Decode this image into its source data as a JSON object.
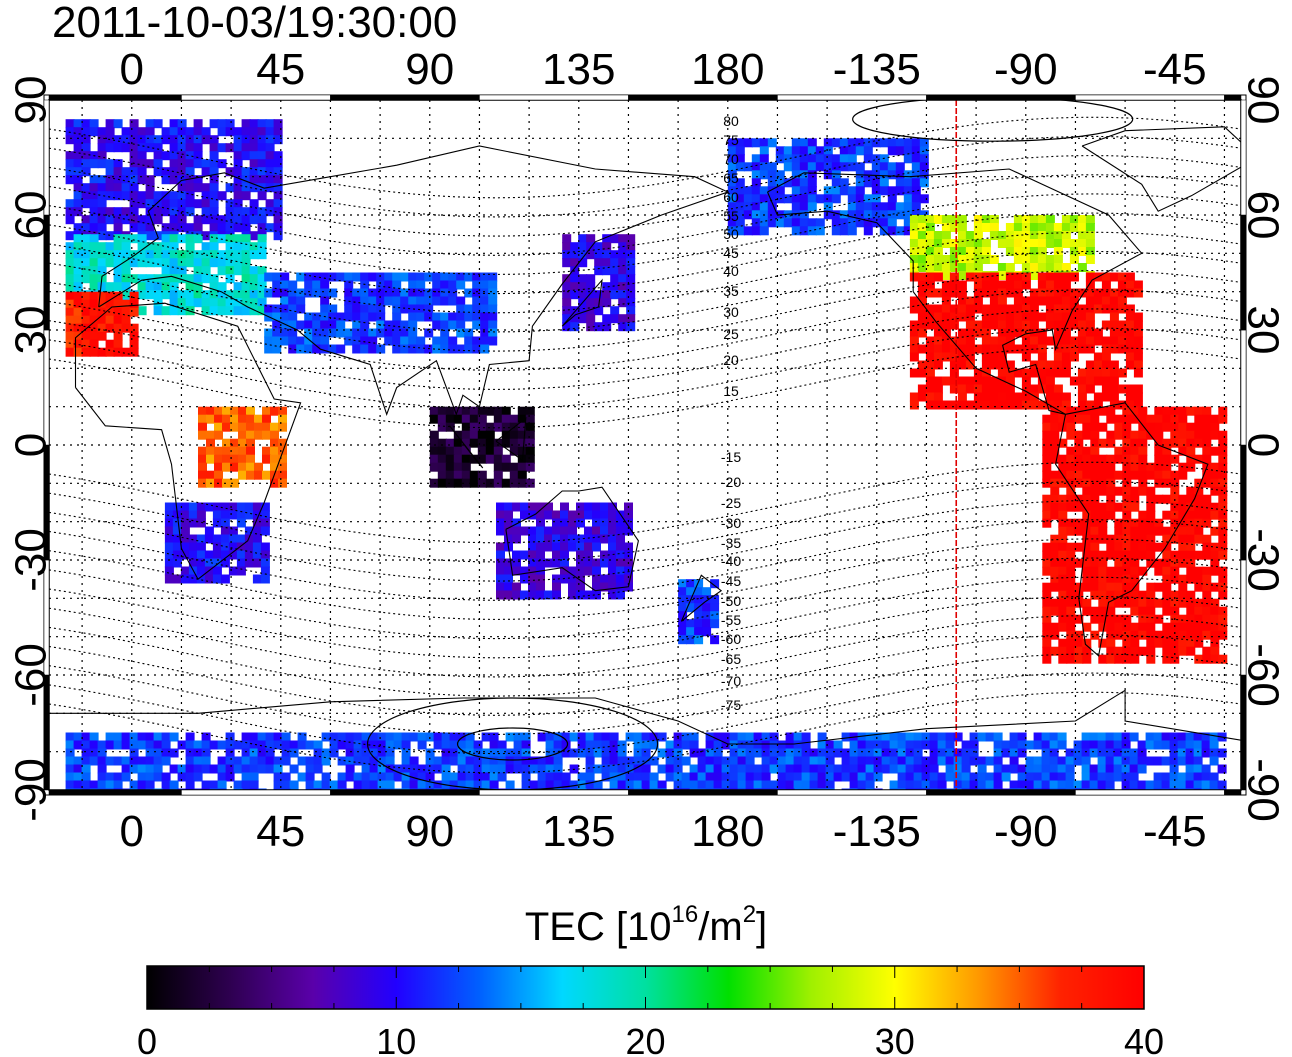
{
  "title": "2011-10-03/19:30:00",
  "top_lon_labels": [
    "0",
    "45",
    "90",
    "135",
    "180",
    "-135",
    "-90",
    "-45"
  ],
  "bottom_lon_labels": [
    "0",
    "45",
    "90",
    "135",
    "180",
    "-135",
    "-90",
    "-45"
  ],
  "lat_labels": [
    "90",
    "60",
    "30",
    "0",
    "-30",
    "-60",
    "-90"
  ],
  "mag_lat_labels_north": [
    "80",
    "75",
    "70",
    "65",
    "60",
    "55",
    "50",
    "45",
    "40",
    "35",
    "30",
    "25",
    "20",
    "15"
  ],
  "mag_lat_labels_south": [
    "-15",
    "-20",
    "-25",
    "-30",
    "-35",
    "-40",
    "-45",
    "-50",
    "-55",
    "-60",
    "-65",
    "-70",
    "-75"
  ],
  "colorbar": {
    "title_prefix": "TEC  [10",
    "title_exp1": "16",
    "title_mid": "/m",
    "title_exp2": "2",
    "title_suffix": "]",
    "min": 0,
    "max": 40,
    "tick_labels": [
      "0",
      "10",
      "20",
      "30",
      "40"
    ],
    "colormap": [
      "#000000",
      "#2e0050",
      "#5a00aa",
      "#2200ff",
      "#0060ff",
      "#00d8ff",
      "#00e0a0",
      "#00e000",
      "#a0f000",
      "#ffff00",
      "#ff9900",
      "#ff2200",
      "#ff0000"
    ]
  },
  "colors": {
    "grid": "#000000",
    "coast": "#000000",
    "meridian_marker": "#e00000"
  },
  "chart_data": {
    "type": "heatmap",
    "quantity": "TEC",
    "unit": "10^16/m^2",
    "x_range": [
      -25,
      335
    ],
    "y_range": [
      -90,
      90
    ],
    "value_range": [
      0,
      40
    ],
    "marker_longitude": -111,
    "regions": [
      {
        "lon": [
          -20,
          45
        ],
        "lat": [
          55,
          85
        ],
        "tec": 10
      },
      {
        "lon": [
          -20,
          40
        ],
        "lat": [
          35,
          55
        ],
        "tec": 18
      },
      {
        "lon": [
          -20,
          0
        ],
        "lat": [
          25,
          40
        ],
        "tec": 38
      },
      {
        "lon": [
          20,
          45
        ],
        "lat": [
          -10,
          10
        ],
        "tec": 35
      },
      {
        "lon": [
          10,
          40
        ],
        "lat": [
          -35,
          -15
        ],
        "tec": 10
      },
      {
        "lon": [
          40,
          110
        ],
        "lat": [
          25,
          45
        ],
        "tec": 12
      },
      {
        "lon": [
          90,
          120
        ],
        "lat": [
          -10,
          10
        ],
        "tec": 2
      },
      {
        "lon": [
          110,
          150
        ],
        "lat": [
          -40,
          -15
        ],
        "tec": 9
      },
      {
        "lon": [
          130,
          150
        ],
        "lat": [
          30,
          55
        ],
        "tec": 9
      },
      {
        "lon": [
          165,
          175
        ],
        "lat": [
          -50,
          -35
        ],
        "tec": 12
      },
      {
        "lon": [
          180,
          240
        ],
        "lat": [
          55,
          80
        ],
        "tec": 12
      },
      {
        "lon": [
          235,
          290
        ],
        "lat": [
          45,
          60
        ],
        "tec": 28
      },
      {
        "lon": [
          235,
          305
        ],
        "lat": [
          10,
          45
        ],
        "tec": 40
      },
      {
        "lon": [
          275,
          330
        ],
        "lat": [
          -55,
          10
        ],
        "tec": 40
      },
      {
        "lon": [
          -20,
          330
        ],
        "lat": [
          -90,
          -75
        ],
        "tec": 12
      }
    ]
  }
}
